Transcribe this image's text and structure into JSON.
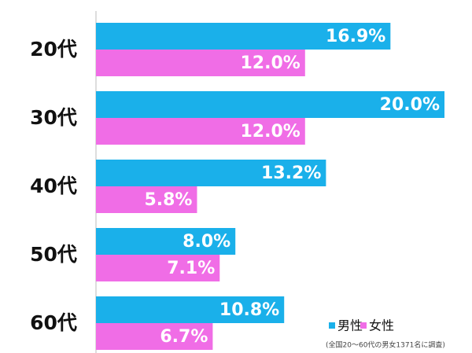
{
  "chart_data": {
    "type": "hbar",
    "categories": [
      "20代",
      "30代",
      "40代",
      "50代",
      "60代"
    ],
    "series": [
      {
        "name": "男性",
        "color": "#1ab0ea",
        "values": [
          16.9,
          20.0,
          13.2,
          8.0,
          10.8
        ],
        "value_labels": [
          "16.9%",
          "20.0%",
          "13.2%",
          "8.0%",
          "10.8%"
        ]
      },
      {
        "name": "女性",
        "color": "#f06de6",
        "values": [
          12.0,
          12.0,
          5.8,
          7.1,
          6.7
        ],
        "value_labels": [
          "12.0%",
          "12.0%",
          "5.8%",
          "7.1%",
          "6.7%"
        ]
      }
    ],
    "xlim": [
      0,
      20
    ],
    "legend": "bottom-right",
    "note": "(全国20～60代の男女1371名に調査)"
  }
}
